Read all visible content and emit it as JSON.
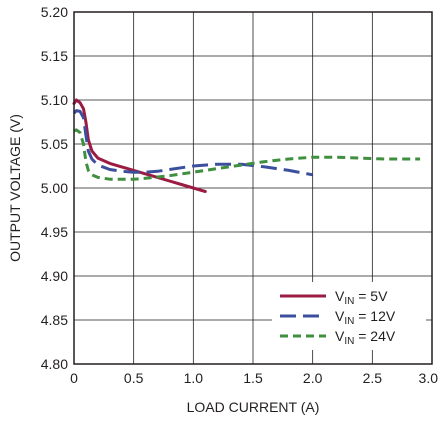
{
  "chart_data": {
    "type": "line",
    "title": "",
    "xlabel": "LOAD CURRENT (A)",
    "ylabel": "OUTPUT VOLTAGE (V)",
    "xlim": [
      0,
      3.0
    ],
    "ylim": [
      4.8,
      5.2
    ],
    "x_ticks": [
      "0",
      "0.5",
      "1.0",
      "1.5",
      "2.0",
      "2.5",
      "3.0"
    ],
    "y_ticks": [
      "4.80",
      "4.85",
      "4.90",
      "4.95",
      "5.00",
      "5.05",
      "5.10",
      "5.15",
      "5.20"
    ],
    "grid": true,
    "legend_position": "bottom-right",
    "series": [
      {
        "name": "V",
        "name_sub": "IN",
        "name_suffix": " = 5V",
        "color": "#9b1b42",
        "dash": "solid",
        "x": [
          0,
          0.02,
          0.05,
          0.08,
          0.1,
          0.12,
          0.15,
          0.2,
          0.3,
          0.4,
          0.5,
          0.6,
          0.7,
          0.8,
          0.9,
          1.0,
          1.1
        ],
        "y": [
          5.096,
          5.1,
          5.097,
          5.09,
          5.075,
          5.055,
          5.042,
          5.034,
          5.028,
          5.024,
          5.02,
          5.016,
          5.012,
          5.008,
          5.004,
          5.0,
          4.996
        ]
      },
      {
        "name": "V",
        "name_sub": "IN",
        "name_suffix": " = 12V",
        "color": "#3b4f9c",
        "dash": "long",
        "x": [
          0,
          0.02,
          0.05,
          0.08,
          0.1,
          0.12,
          0.15,
          0.2,
          0.3,
          0.4,
          0.5,
          0.6,
          0.7,
          0.8,
          1.0,
          1.2,
          1.4,
          1.6,
          1.8,
          2.0
        ],
        "y": [
          5.085,
          5.088,
          5.087,
          5.08,
          5.06,
          5.042,
          5.033,
          5.026,
          5.021,
          5.019,
          5.018,
          5.018,
          5.019,
          5.021,
          5.025,
          5.027,
          5.027,
          5.024,
          5.02,
          5.015
        ]
      },
      {
        "name": "V",
        "name_sub": "IN",
        "name_suffix": " = 24V",
        "color": "#3f8f3f",
        "dash": "short",
        "x": [
          0,
          0.02,
          0.05,
          0.08,
          0.1,
          0.12,
          0.15,
          0.2,
          0.3,
          0.4,
          0.5,
          0.6,
          0.8,
          1.0,
          1.2,
          1.4,
          1.6,
          1.8,
          2.0,
          2.2,
          2.4,
          2.6,
          2.8,
          2.9
        ],
        "y": [
          5.065,
          5.066,
          5.063,
          5.05,
          5.03,
          5.02,
          5.015,
          5.012,
          5.01,
          5.01,
          5.01,
          5.011,
          5.014,
          5.018,
          5.022,
          5.026,
          5.03,
          5.033,
          5.035,
          5.035,
          5.034,
          5.033,
          5.033,
          5.033
        ]
      }
    ]
  }
}
